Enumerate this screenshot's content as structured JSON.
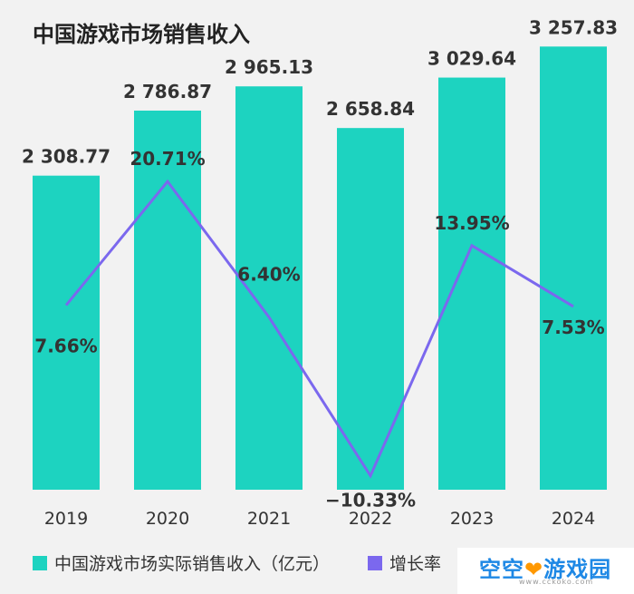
{
  "title": "中国游戏市场销售收入",
  "chart_data": {
    "type": "bar",
    "categories": [
      "2019",
      "2020",
      "2021",
      "2022",
      "2023",
      "2024"
    ],
    "values": [
      2308.77,
      2786.87,
      2965.13,
      2658.84,
      3029.64,
      3257.83
    ],
    "value_labels": [
      "2 308.77",
      "2 786.87",
      "2 965.13",
      "2 658.84",
      "3 029.64",
      "3 257.83"
    ],
    "series": [
      {
        "name": "中国游戏市场实际销售收入（亿元）",
        "type": "bar",
        "color": "#1dd3c0",
        "values": [
          2308.77,
          2786.87,
          2965.13,
          2658.84,
          3029.64,
          3257.83
        ]
      },
      {
        "name": "增长率",
        "type": "line",
        "color": "#7b68ee",
        "values": [
          7.66,
          20.71,
          6.4,
          -10.33,
          13.95,
          7.53
        ]
      }
    ],
    "growth_labels": [
      "7.66%",
      "20.71%",
      "6.40%",
      "−10.33%",
      "13.95%",
      "7.53%"
    ],
    "bar_ylim": [
      0,
      3600
    ],
    "line_ylim": [
      -14,
      30
    ],
    "legend_position": "bottom"
  },
  "legend": {
    "bar_label": "中国游戏市场实际销售收入（亿元）",
    "line_label": "增长率"
  },
  "watermark": {
    "text": "空空",
    "text2": "游戏园",
    "url": "www.cckoko.com"
  }
}
